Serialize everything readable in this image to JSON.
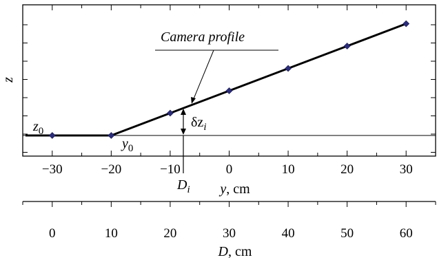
{
  "chart_data": {
    "type": "line",
    "title": "",
    "xlabel_var": "y",
    "xlabel_unit": ", cm",
    "ylabel": "z",
    "xlim": [
      -35,
      35
    ],
    "xticks": [
      -30,
      -20,
      -10,
      0,
      10,
      20,
      30
    ],
    "secondary_x_axis": {
      "label_var": "D",
      "label_unit": ", cm",
      "xlim": [
        -5,
        65
      ],
      "xticks": [
        0,
        10,
        20,
        30,
        40,
        50,
        60
      ]
    },
    "series": [
      {
        "name": "Camera profile",
        "x": [
          -30,
          -20,
          -10,
          0,
          10,
          20,
          30
        ],
        "y": [
          0,
          0,
          1,
          2,
          3,
          4,
          5
        ]
      }
    ],
    "baseline_z": 0,
    "grid": false,
    "annotations": {
      "curve_label": "Camera profile",
      "z0": {
        "base": "z",
        "sub": "0"
      },
      "y0": {
        "base": "y",
        "sub": "0"
      },
      "delta_z": {
        "base": "δz",
        "sub": "i"
      },
      "d_i": {
        "base": "D",
        "sub": "i"
      }
    }
  }
}
